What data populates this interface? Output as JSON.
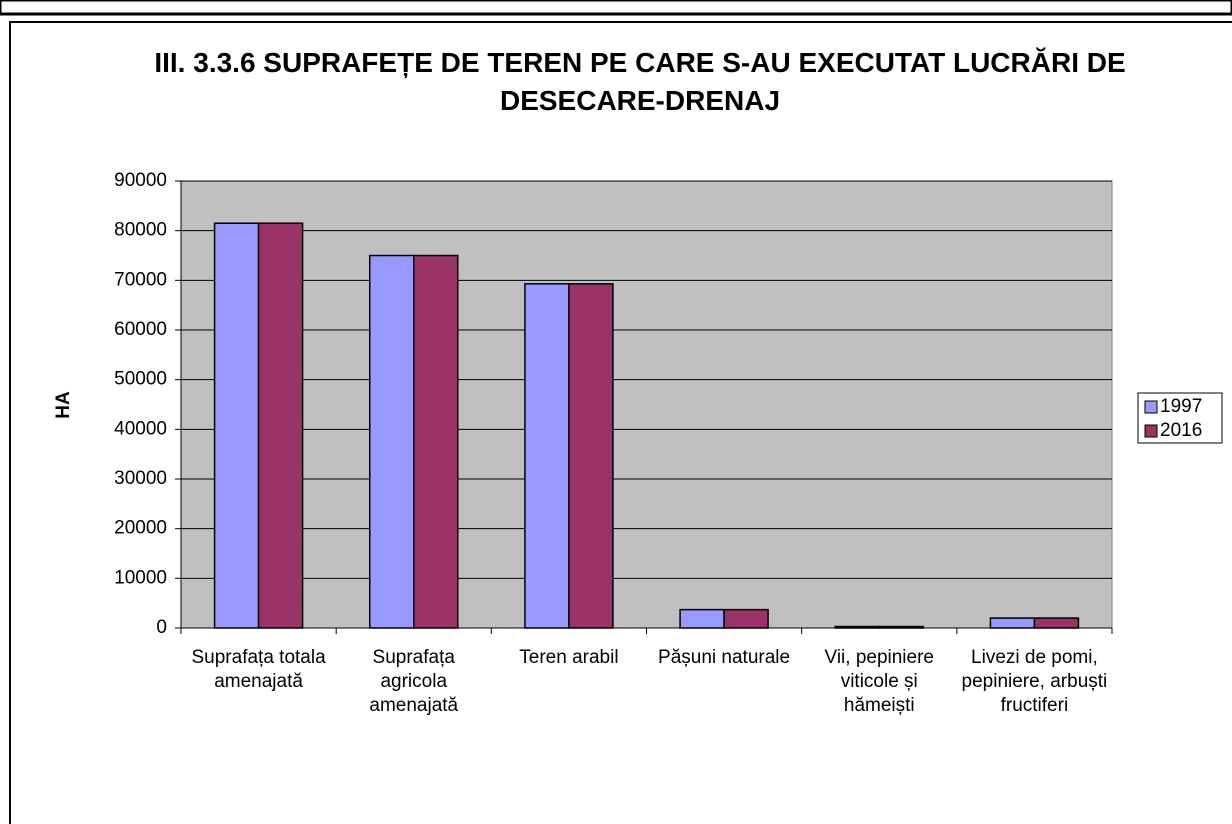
{
  "chart_data": {
    "type": "bar",
    "title": "III. 3.3.6 SUPRAFEȚE DE TEREN PE CARE S-AU EXECUTAT LUCRĂRI DE DESECARE-DRENAJ",
    "y_label": "HA",
    "categories": [
      "Suprafața totala amenajată",
      "Suprafața agricola amenajată",
      "Teren arabil",
      "Pășuni naturale",
      "Vii, pepiniere viticole și hămeiști",
      "Livezi de pomi, pepiniere, arbuști fructiferi"
    ],
    "series": [
      {
        "name": "1997",
        "color": "#9999ff",
        "values": [
          81500,
          75000,
          69300,
          3700,
          300,
          2000
        ]
      },
      {
        "name": "2016",
        "color": "#993366",
        "values": [
          81500,
          75000,
          69300,
          3700,
          300,
          2000
        ]
      }
    ],
    "ylim": [
      0,
      90000
    ],
    "yticks": [
      0,
      10000,
      20000,
      30000,
      40000,
      50000,
      60000,
      70000,
      80000,
      90000
    ],
    "grid": true,
    "legend": "right"
  }
}
